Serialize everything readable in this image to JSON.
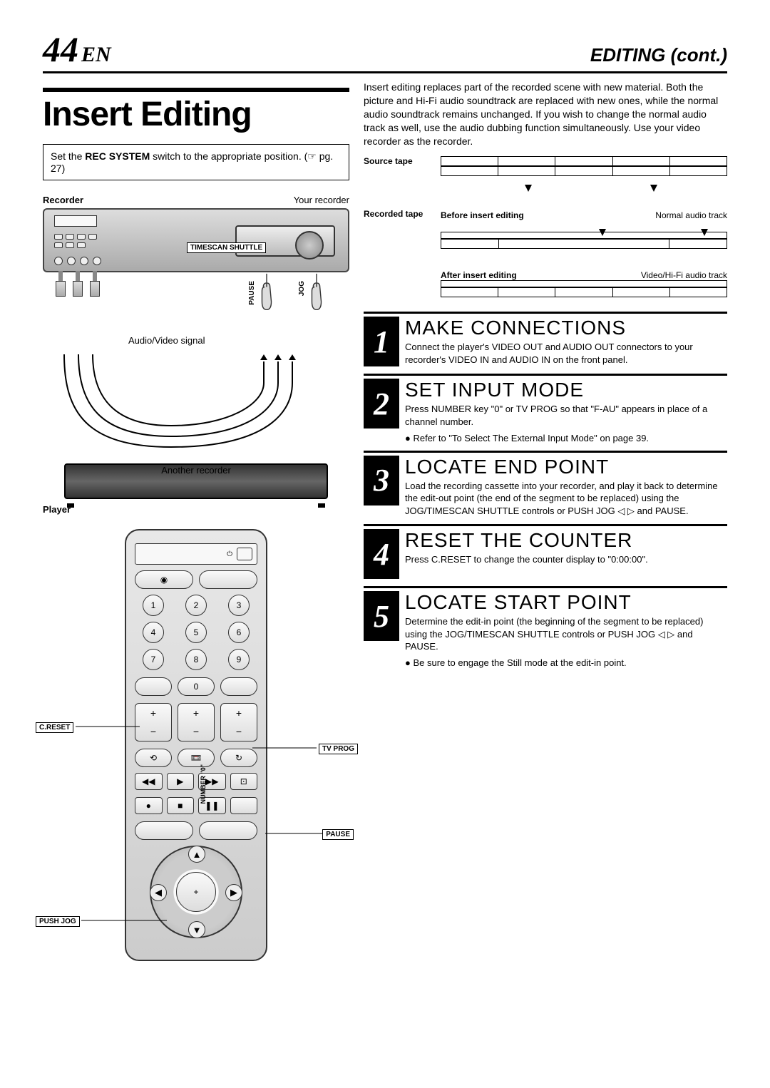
{
  "header": {
    "page_number": "44",
    "language": "EN",
    "section": "EDITING (cont.)"
  },
  "title": "Insert Editing",
  "intro": "Insert editing replaces part of the recorded scene with new material. Both the picture and Hi-Fi audio soundtrack are replaced with new ones, while the normal audio soundtrack remains unchanged. If you wish to change the normal audio track as well, use the audio dubbing function simultaneously. Use your video recorder as the recorder.",
  "note_box": {
    "prefix": "Set the ",
    "switch_name": "REC SYSTEM",
    "suffix": " switch to the appropriate position. (☞ pg. 27)"
  },
  "recorder_diagram": {
    "recorder_label": "Recorder",
    "your_recorder": "Your recorder",
    "timescan": "TIMESCAN SHUTTLE",
    "pause": "PAUSE",
    "jog": "JOG",
    "signal_label": "Audio/Video signal",
    "another_recorder": "Another recorder",
    "player_label": "Player"
  },
  "remote": {
    "creset": "C.RESET",
    "tvprog": "TV PROG",
    "pause": "PAUSE",
    "pushjog": "PUSH JOG",
    "number0": "NUMBER \"0\"",
    "keys": [
      "1",
      "2",
      "3",
      "4",
      "5",
      "6",
      "7",
      "8",
      "9"
    ]
  },
  "tape_diagram": {
    "source_tape": "Source tape",
    "recorded_tape": "Recorded tape",
    "before": "Before insert editing",
    "after": "After insert editing",
    "normal_audio": "Normal audio track",
    "video_hifi": "Video/Hi-Fi audio track"
  },
  "steps": [
    {
      "num": "1",
      "title": "MAKE CONNECTIONS",
      "text": "Connect the player's VIDEO OUT and AUDIO OUT connectors to your recorder's VIDEO IN and AUDIO IN on the front panel.",
      "bullets": []
    },
    {
      "num": "2",
      "title": "SET INPUT MODE",
      "text": "Press NUMBER key \"0\" or TV PROG so that \"F-AU\" appears in place of a channel number.",
      "bullets": [
        "Refer to \"To Select The External Input Mode\" on page 39."
      ]
    },
    {
      "num": "3",
      "title": "LOCATE END POINT",
      "text": "Load the recording cassette into your recorder, and play it back to determine the edit-out point (the end of the segment to be replaced) using the JOG/TIMESCAN SHUTTLE controls or PUSH JOG ◁ ▷ and PAUSE.",
      "bullets": []
    },
    {
      "num": "4",
      "title": "RESET THE COUNTER",
      "text": "Press C.RESET to change the counter display to \"0:00:00\".",
      "bullets": []
    },
    {
      "num": "5",
      "title": "LOCATE START POINT",
      "text": "Determine the edit-in point (the beginning of the segment to be replaced) using the JOG/TIMESCAN SHUTTLE controls or PUSH JOG ◁ ▷ and PAUSE.",
      "bullets": [
        "Be sure to engage the Still mode at the edit-in point."
      ]
    }
  ]
}
